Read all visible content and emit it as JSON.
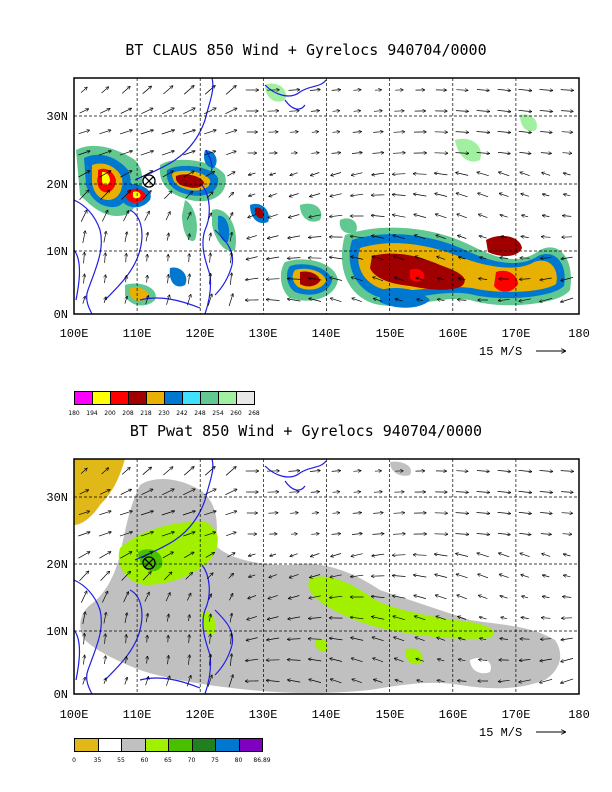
{
  "panels": [
    {
      "title": "BT CLAUS 850 Wind + Gyrelocs 940704/0000",
      "lon_labels": [
        "100E",
        "110E",
        "120E",
        "130E",
        "140E",
        "150E",
        "160E",
        "170E",
        "180"
      ],
      "lat_labels": [
        "0N",
        "10N",
        "20N",
        "30N"
      ],
      "reference_vector": "15 M/S",
      "colorbar": {
        "colors": [
          "#ff00ff",
          "#ffff00",
          "#ff0000",
          "#a00000",
          "#e8b000",
          "#0078d0",
          "#40e0ff",
          "#60c890",
          "#a0f0a0",
          "#e8e8e8"
        ],
        "labels": [
          "180",
          "194",
          "200",
          "208",
          "218",
          "230",
          "242",
          "248",
          "254",
          "260",
          "268"
        ]
      },
      "gyre_location": {
        "lon": 111.5,
        "lat": 20.2
      }
    },
    {
      "title": "BT Pwat 850 Wind + Gyrelocs 940704/0000",
      "lon_labels": [
        "100E",
        "110E",
        "120E",
        "130E",
        "140E",
        "150E",
        "160E",
        "170E",
        "180"
      ],
      "lat_labels": [
        "0N",
        "10N",
        "20N",
        "30N"
      ],
      "reference_vector": "15 M/S",
      "colorbar": {
        "colors": [
          "#e0b818",
          "#ffffff",
          "#c0c0c0",
          "#a0f000",
          "#48c000",
          "#208020",
          "#0078d0",
          "#8000c0"
        ],
        "labels": [
          "0",
          "35",
          "55",
          "60",
          "65",
          "70",
          "75",
          "80",
          "86.89"
        ]
      },
      "gyre_location": {
        "lon": 111.5,
        "lat": 20.2
      }
    }
  ],
  "colors": {
    "coastline": "#1f1fe8",
    "grid": "#000000",
    "frame": "#000000"
  }
}
